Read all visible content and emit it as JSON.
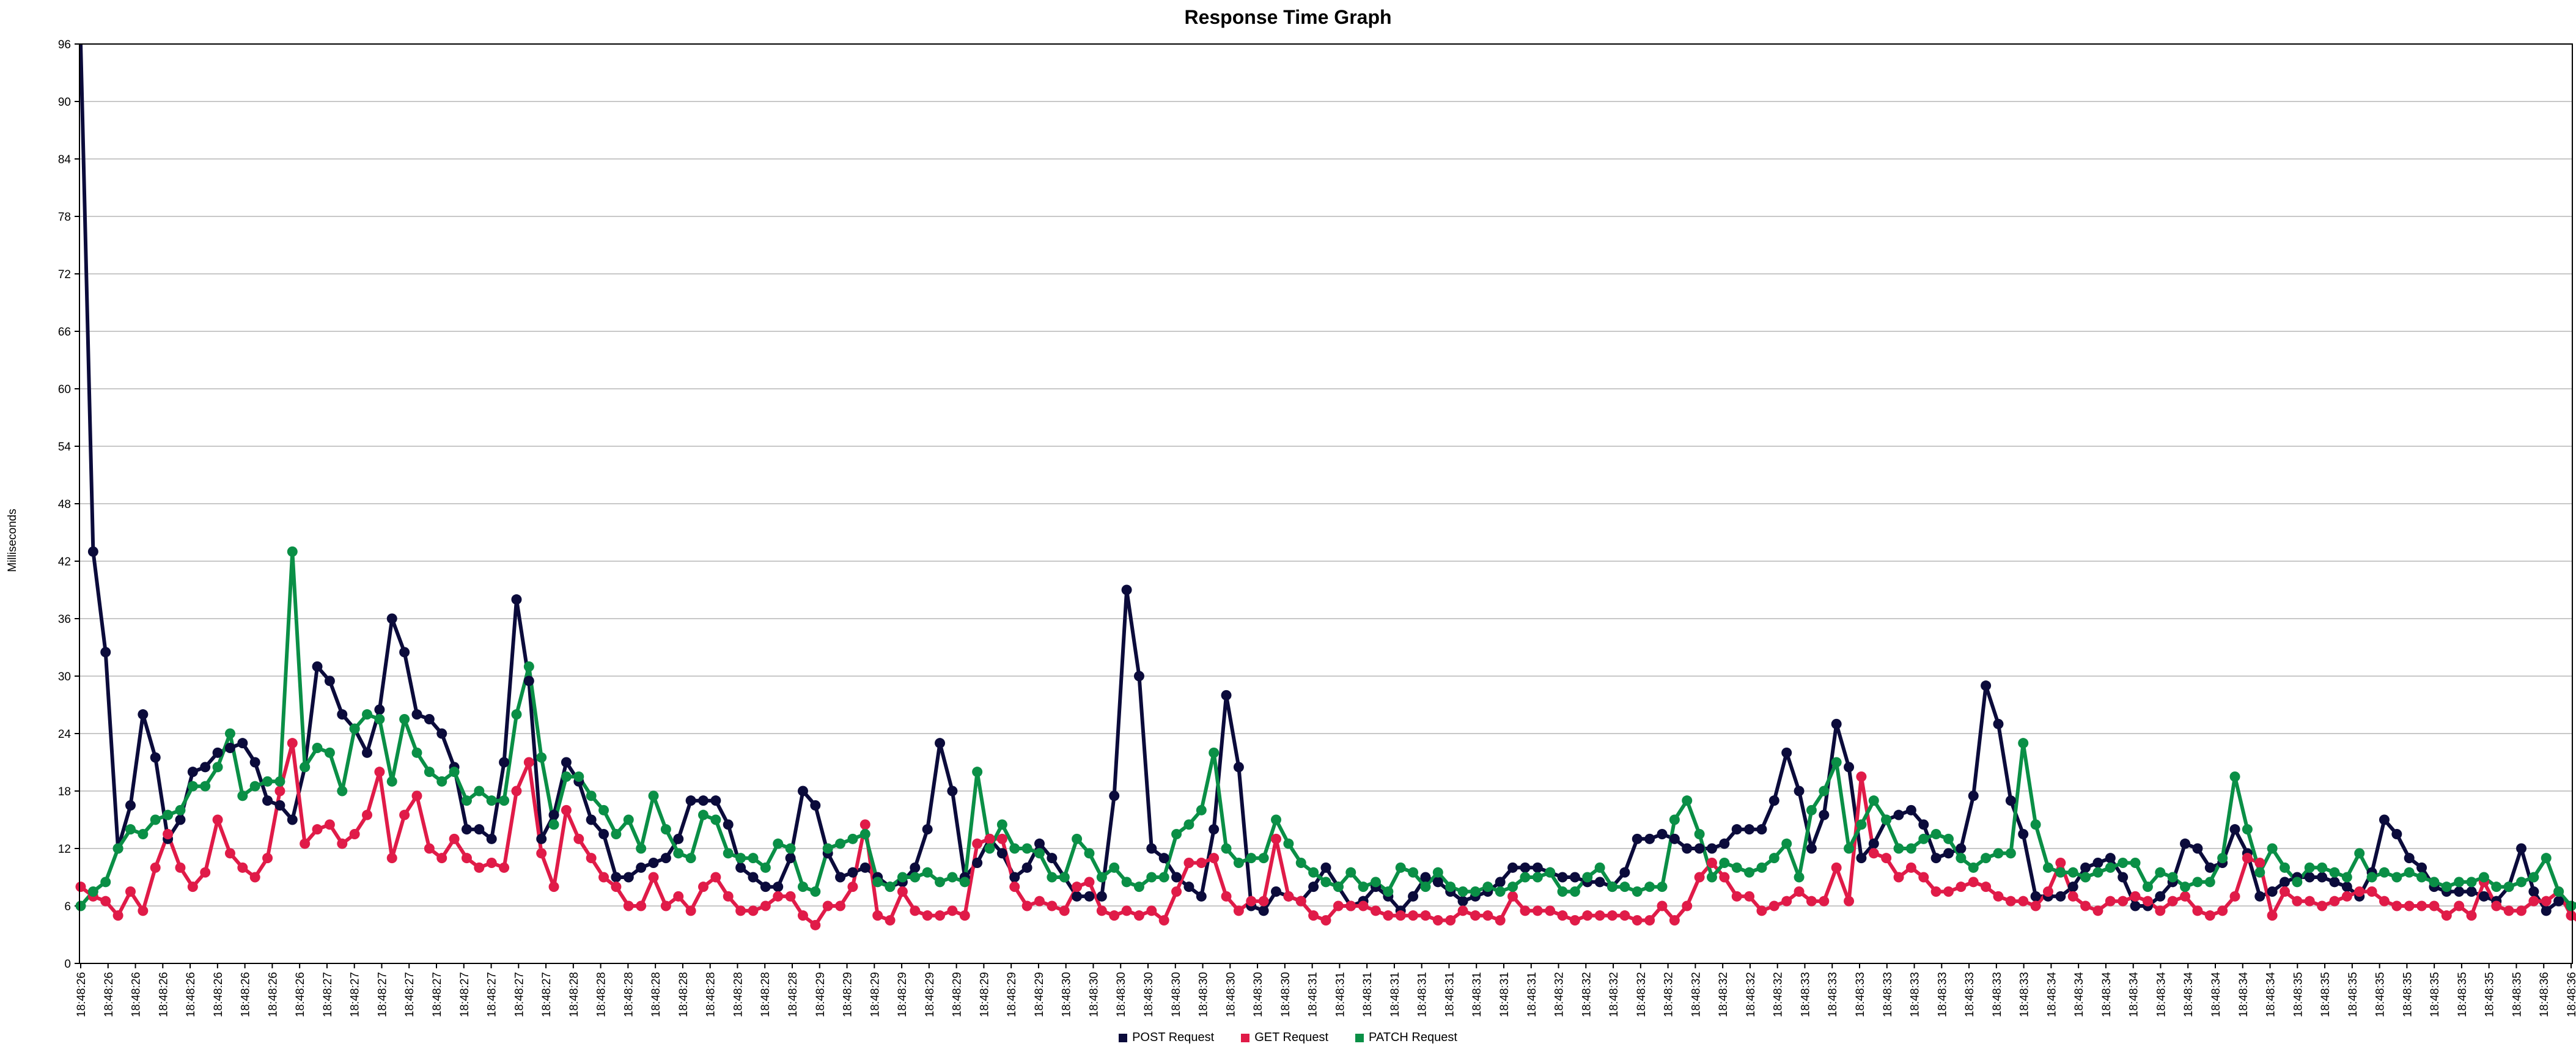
{
  "chart_data": {
    "type": "line",
    "title": "Response Time Graph",
    "xlabel": "",
    "ylabel": "Milliseconds",
    "ylim": [
      0,
      96
    ],
    "yticks": [
      0,
      6,
      12,
      18,
      24,
      30,
      36,
      42,
      48,
      54,
      60,
      66,
      72,
      78,
      84,
      90,
      96
    ],
    "grid": true,
    "legend_position": "bottom",
    "x_tick_labels": [
      "18:48:26",
      "18:48:26",
      "18:48:26",
      "18:48:26",
      "18:48:26",
      "18:48:26",
      "18:48:26",
      "18:48:26",
      "18:48:26",
      "18:48:27",
      "18:48:27",
      "18:48:27",
      "18:48:27",
      "18:48:27",
      "18:48:27",
      "18:48:27",
      "18:48:27",
      "18:48:27",
      "18:48:28",
      "18:48:28",
      "18:48:28",
      "18:48:28",
      "18:48:28",
      "18:48:28",
      "18:48:28",
      "18:48:28",
      "18:48:28",
      "18:48:29",
      "18:48:29",
      "18:48:29",
      "18:48:29",
      "18:48:29",
      "18:48:29",
      "18:48:29",
      "18:48:29",
      "18:48:29",
      "18:48:30",
      "18:48:30",
      "18:48:30",
      "18:48:30",
      "18:48:30",
      "18:48:30",
      "18:48:30",
      "18:48:30",
      "18:48:30",
      "18:48:31",
      "18:48:31",
      "18:48:31",
      "18:48:31",
      "18:48:31",
      "18:48:31",
      "18:48:31",
      "18:48:31",
      "18:48:31",
      "18:48:32",
      "18:48:32",
      "18:48:32",
      "18:48:32",
      "18:48:32",
      "18:48:32",
      "18:48:32",
      "18:48:32",
      "18:48:32",
      "18:48:33",
      "18:48:33",
      "18:48:33",
      "18:48:33",
      "18:48:33",
      "18:48:33",
      "18:48:33",
      "18:48:33",
      "18:48:33",
      "18:48:34",
      "18:48:34",
      "18:48:34",
      "18:48:34",
      "18:48:34",
      "18:48:34",
      "18:48:34",
      "18:48:34",
      "18:48:34",
      "18:48:35",
      "18:48:35",
      "18:48:35",
      "18:48:35",
      "18:48:35",
      "18:48:35",
      "18:48:35",
      "18:48:35",
      "18:48:35",
      "18:48:36",
      "18:48:36"
    ],
    "series": [
      {
        "name": "POST Request",
        "color": "#0b0b3b",
        "values": [
          100,
          43,
          32.5,
          12,
          16.5,
          26,
          21.5,
          13,
          15,
          20,
          20.5,
          22,
          22.5,
          23,
          21,
          17,
          16.5,
          15,
          20.5,
          31,
          29.5,
          26,
          24.5,
          22,
          26.5,
          36,
          32.5,
          26,
          25.5,
          24,
          20.5,
          14,
          14,
          13,
          21,
          38,
          29.5,
          13,
          15.5,
          21,
          19,
          15,
          13.5,
          9,
          9,
          10,
          10.5,
          11,
          13,
          17,
          17,
          17,
          14.5,
          10,
          9,
          8,
          8,
          11,
          18,
          16.5,
          11.5,
          9,
          9.5,
          10,
          9,
          8,
          8.5,
          10,
          14,
          23,
          18,
          9,
          10.5,
          13,
          11.5,
          9,
          10,
          12.5,
          11,
          9,
          7,
          7,
          7,
          17.5,
          39,
          30,
          12,
          11,
          9,
          8,
          7,
          14,
          28,
          20.5,
          6,
          5.5,
          7.5,
          7,
          6.5,
          8,
          10,
          8,
          6,
          6.5,
          8,
          7,
          5.5,
          7,
          9,
          8.5,
          7.5,
          6.5,
          7,
          7.5,
          8.5,
          10,
          10,
          10,
          9.5,
          9,
          9,
          8.5,
          8.5,
          8,
          9.5,
          13,
          13,
          13.5,
          13,
          12,
          12,
          12,
          12.5,
          14,
          14,
          14,
          17,
          22,
          18,
          12,
          15.5,
          25,
          20.5,
          11,
          12.5,
          15,
          15.5,
          16,
          14.5,
          11,
          11.5,
          12,
          17.5,
          29,
          25,
          17,
          13.5,
          7,
          7,
          7,
          8,
          10,
          10.5,
          11,
          9,
          6,
          6,
          7,
          8.5,
          12.5,
          12,
          10,
          10.5,
          14,
          11.5,
          7,
          7.5,
          8.5,
          9,
          9,
          9,
          8.5,
          8,
          7,
          9.5,
          15,
          13.5,
          11,
          10,
          8,
          7.5,
          7.5,
          7.5,
          7,
          6.5,
          8,
          12,
          7.5,
          5.5,
          6.5,
          6
        ]
      },
      {
        "name": "GET Request",
        "color": "#e01b48",
        "values": [
          8,
          7,
          6.5,
          5,
          7.5,
          5.5,
          10,
          13.5,
          10,
          8,
          9.5,
          15,
          11.5,
          10,
          9,
          11,
          18,
          23,
          12.5,
          14,
          14.5,
          12.5,
          13.5,
          15.5,
          20,
          11,
          15.5,
          17.5,
          12,
          11,
          13,
          11,
          10,
          10.5,
          10,
          18,
          21,
          11.5,
          8,
          16,
          13,
          11,
          9,
          8,
          6,
          6,
          9,
          6,
          7,
          5.5,
          8,
          9,
          7,
          5.5,
          5.5,
          6,
          7,
          7,
          5,
          4,
          6,
          6,
          8,
          14.5,
          5,
          4.5,
          7.5,
          5.5,
          5,
          5,
          5.5,
          5,
          12.5,
          13,
          13,
          8,
          6,
          6.5,
          6,
          5.5,
          8,
          8.5,
          5.5,
          5,
          5.5,
          5,
          5.5,
          4.5,
          7.5,
          10.5,
          10.5,
          11,
          7,
          5.5,
          6.5,
          6.5,
          13,
          7,
          6.5,
          5,
          4.5,
          6,
          6,
          6,
          5.5,
          5,
          5,
          5,
          5,
          4.5,
          4.5,
          5.5,
          5,
          5,
          4.5,
          7,
          5.5,
          5.5,
          5.5,
          5,
          4.5,
          5,
          5,
          5,
          5,
          4.5,
          4.5,
          6,
          4.5,
          6,
          9,
          10.5,
          9,
          7,
          7,
          5.5,
          6,
          6.5,
          7.5,
          6.5,
          6.5,
          10,
          6.5,
          19.5,
          11.5,
          11,
          9,
          10,
          9,
          7.5,
          7.5,
          8,
          8.5,
          8,
          7,
          6.5,
          6.5,
          6,
          7.5,
          10.5,
          7,
          6,
          5.5,
          6.5,
          6.5,
          7,
          6.5,
          5.5,
          6.5,
          7,
          5.5,
          5,
          5.5,
          7,
          11,
          10.5,
          5,
          7.5,
          6.5,
          6.5,
          6,
          6.5,
          7,
          7.5,
          7.5,
          6.5,
          6,
          6,
          6,
          6,
          5,
          6,
          5,
          8.5,
          6,
          5.5,
          5.5,
          6.5,
          6.5,
          7.5,
          5,
          4
        ]
      },
      {
        "name": "PATCH Request",
        "color": "#0a8f46",
        "values": [
          6,
          7.5,
          8.5,
          12,
          14,
          13.5,
          15,
          15.5,
          16,
          18.5,
          18.5,
          20.5,
          24,
          17.5,
          18.5,
          19,
          19,
          43,
          20.5,
          22.5,
          22,
          18,
          24.5,
          26,
          25.5,
          19,
          25.5,
          22,
          20,
          19,
          20,
          17,
          18,
          17,
          17,
          26,
          31,
          21.5,
          14.5,
          19.5,
          19.5,
          17.5,
          16,
          13.5,
          15,
          12,
          17.5,
          14,
          11.5,
          11,
          15.5,
          15,
          11.5,
          11,
          11,
          10,
          12.5,
          12,
          8,
          7.5,
          12,
          12.5,
          13,
          13.5,
          8.5,
          8,
          9,
          9,
          9.5,
          8.5,
          9,
          8.5,
          20,
          12,
          14.5,
          12,
          12,
          11.5,
          9,
          9,
          13,
          11.5,
          9,
          10,
          8.5,
          8,
          9,
          9,
          13.5,
          14.5,
          16,
          22,
          12,
          10.5,
          11,
          11,
          15,
          12.5,
          10.5,
          9.5,
          8.5,
          8,
          9.5,
          8,
          8.5,
          7.5,
          10,
          9.5,
          8,
          9.5,
          8,
          7.5,
          7.5,
          8,
          7.5,
          8,
          9,
          9,
          9.5,
          7.5,
          7.5,
          9,
          10,
          8,
          8,
          7.5,
          8,
          8,
          15,
          17,
          13.5,
          9,
          10.5,
          10,
          9.5,
          10,
          11,
          12.5,
          9,
          16,
          18,
          21,
          12,
          14.5,
          17,
          15,
          12,
          12,
          13,
          13.5,
          13,
          11,
          10,
          11,
          11.5,
          11.5,
          23,
          14.5,
          10,
          9.5,
          9.5,
          9,
          9.5,
          10,
          10.5,
          10.5,
          8,
          9.5,
          9,
          8,
          8.5,
          8.5,
          11,
          19.5,
          14,
          9.5,
          12,
          10,
          8.5,
          10,
          10,
          9.5,
          9,
          11.5,
          9,
          9.5,
          9,
          9.5,
          9,
          8.5,
          8,
          8.5,
          8.5,
          9,
          8,
          8,
          8.5,
          9,
          11,
          7.5,
          6,
          6.5
        ]
      }
    ]
  }
}
